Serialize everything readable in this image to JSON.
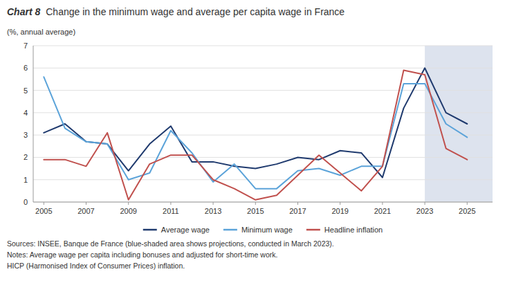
{
  "chart_data": {
    "type": "line",
    "title": "Chart 8",
    "subtitle": "Change in the minimum wage and average per capita wage in France",
    "y_label": "(%, annual average)",
    "x": [
      2005,
      2006,
      2007,
      2008,
      2009,
      2010,
      2011,
      2012,
      2013,
      2014,
      2015,
      2016,
      2017,
      2018,
      2019,
      2020,
      2021,
      2022,
      2023,
      2024,
      2025
    ],
    "series": [
      {
        "name": "Average wage",
        "color": "#1f3a6e",
        "values": [
          3.1,
          3.5,
          2.7,
          2.6,
          1.4,
          2.6,
          3.4,
          1.8,
          1.8,
          1.6,
          1.5,
          1.7,
          2.0,
          1.9,
          2.3,
          2.2,
          1.1,
          4.2,
          6.0,
          4.0,
          3.5
        ]
      },
      {
        "name": "Minimum wage",
        "color": "#5ba3d9",
        "values": [
          5.6,
          3.3,
          2.7,
          2.6,
          1.0,
          1.3,
          3.2,
          2.2,
          0.9,
          1.7,
          0.6,
          0.6,
          1.4,
          1.5,
          1.2,
          1.6,
          1.6,
          5.3,
          5.3,
          3.5,
          2.9
        ]
      },
      {
        "name": "Headline inflation",
        "color": "#c0504d",
        "values": [
          1.9,
          1.9,
          1.6,
          3.1,
          0.1,
          1.7,
          2.1,
          2.1,
          1.0,
          0.6,
          0.1,
          0.3,
          1.2,
          2.1,
          1.3,
          0.5,
          1.6,
          5.9,
          5.7,
          2.4,
          1.9
        ]
      }
    ],
    "xlim": [
      2004.5,
      2026.2
    ],
    "xticks": [
      2005,
      2007,
      2009,
      2011,
      2013,
      2015,
      2017,
      2019,
      2021,
      2023,
      2025
    ],
    "ylim": [
      0,
      7
    ],
    "yticks": [
      0,
      1,
      2,
      3,
      4,
      5,
      6,
      7
    ],
    "shade": {
      "from": 2023,
      "to": 2026.2,
      "color": "#dde3ee"
    },
    "grid": true,
    "legend": "bottom",
    "annotations": [
      "Sources: INSEE, Banque de France (blue-shaded area shows projections, conducted in March 2023).",
      "Notes: Average wage per capita including bonuses and adjusted for short-time work.",
      "HICP (Harmonised Index of Consumer Prices) inflation."
    ]
  }
}
